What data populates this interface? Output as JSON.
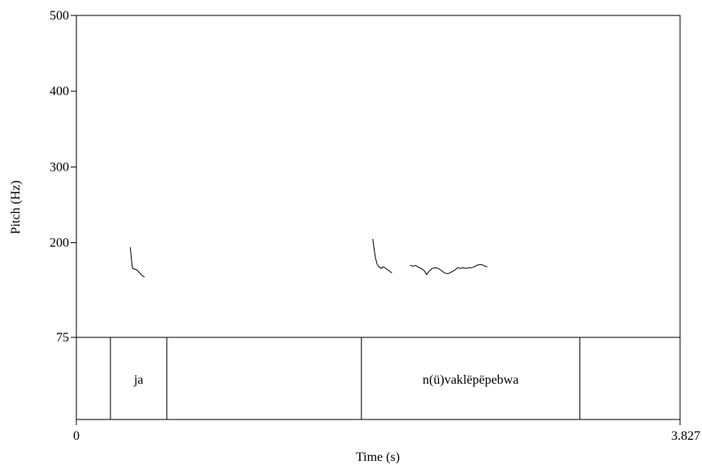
{
  "chart_data": {
    "type": "line",
    "title": "",
    "xlabel": "Time (s)",
    "ylabel": "Pitch (Hz)",
    "xlim": [
      0,
      3.827
    ],
    "ylim": [
      75,
      500
    ],
    "x_ticks": [
      {
        "value": 0,
        "label": "0"
      },
      {
        "value": 3.827,
        "label": "3.827"
      }
    ],
    "y_ticks": [
      {
        "value": 75,
        "label": "75"
      },
      {
        "value": 200,
        "label": "200"
      },
      {
        "value": 300,
        "label": "300"
      },
      {
        "value": 400,
        "label": "400"
      },
      {
        "value": 500,
        "label": "500"
      }
    ],
    "grid": false,
    "legend": "none",
    "series": [
      {
        "points": [
          [
            0.342,
            194
          ],
          [
            0.347,
            182
          ],
          [
            0.352,
            172
          ],
          [
            0.357,
            166
          ],
          [
            0.37,
            165
          ],
          [
            0.385,
            164
          ],
          [
            0.397,
            161
          ],
          [
            0.41,
            158
          ],
          [
            0.42,
            156
          ],
          [
            0.432,
            155
          ]
        ]
      },
      {
        "points": [
          [
            1.879,
            205
          ],
          [
            1.887,
            192
          ],
          [
            1.896,
            180
          ],
          [
            1.906,
            172
          ],
          [
            1.918,
            168
          ],
          [
            1.932,
            166
          ],
          [
            1.945,
            168
          ],
          [
            1.956,
            167
          ],
          [
            1.968,
            165
          ],
          [
            1.982,
            163
          ],
          [
            1.995,
            161
          ],
          [
            2.0,
            160
          ]
        ]
      },
      {
        "points": [
          [
            2.115,
            170
          ],
          [
            2.135,
            169
          ],
          [
            2.15,
            170
          ],
          [
            2.165,
            168
          ],
          [
            2.185,
            166
          ],
          [
            2.205,
            163
          ],
          [
            2.22,
            158
          ],
          [
            2.235,
            162
          ],
          [
            2.255,
            166
          ],
          [
            2.275,
            167
          ],
          [
            2.295,
            166
          ],
          [
            2.315,
            163
          ],
          [
            2.335,
            160
          ],
          [
            2.355,
            159
          ],
          [
            2.375,
            161
          ],
          [
            2.4,
            164
          ],
          [
            2.418,
            167
          ],
          [
            2.435,
            166
          ],
          [
            2.452,
            167
          ],
          [
            2.47,
            166
          ],
          [
            2.488,
            167
          ],
          [
            2.505,
            167
          ],
          [
            2.522,
            168
          ],
          [
            2.535,
            170
          ],
          [
            2.552,
            171
          ],
          [
            2.572,
            171
          ],
          [
            2.59,
            169
          ],
          [
            2.605,
            168
          ]
        ]
      }
    ],
    "tier": {
      "boundaries": [
        0.216,
        0.573,
        1.807,
        3.192
      ],
      "intervals": [
        {
          "start": 0.216,
          "end": 0.573,
          "label": "ja"
        },
        {
          "start": 1.807,
          "end": 3.192,
          "label": "n(ü)vaklëpëpebwa"
        }
      ]
    },
    "colors": {
      "line": "#000000",
      "axis": "#000000",
      "background": "#ffffff"
    }
  }
}
